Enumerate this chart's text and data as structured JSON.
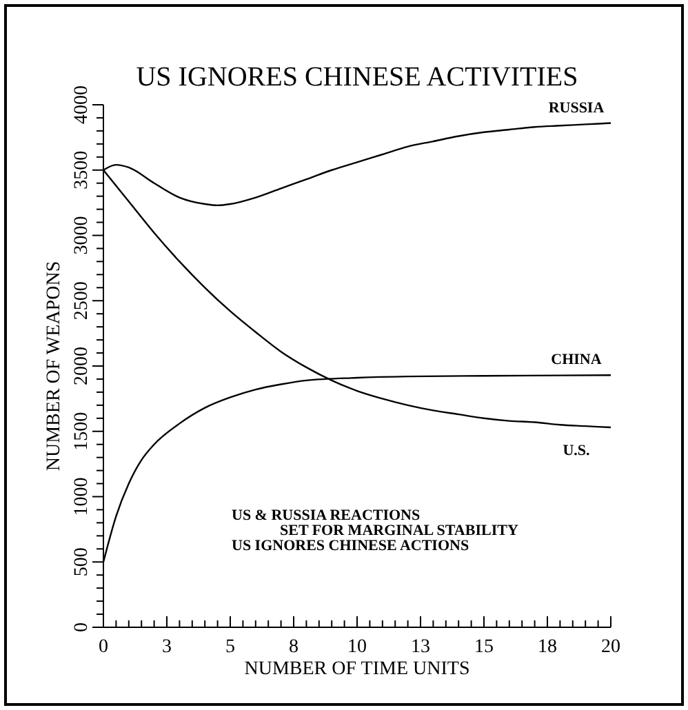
{
  "chart_data": {
    "type": "line",
    "title": "US IGNORES CHINESE ACTIVITIES",
    "xlabel": "NUMBER OF TIME UNITS",
    "ylabel": "NUMBER OF WEAPONS",
    "annotations": [
      "US & RUSSIA REACTIONS",
      "SET FOR MARGINAL STABILITY",
      "US IGNORES CHINESE ACTIONS"
    ],
    "xlim": [
      0,
      20
    ],
    "ylim": [
      0,
      4000
    ],
    "xticks": [
      0,
      {
        "value": 0.5,
        "label": null
      },
      {
        "value": 1,
        "label": null
      },
      {
        "value": 1.5,
        "label": null
      },
      {
        "value": 2,
        "label": null
      },
      {
        "value": 2.5,
        "label": "3"
      },
      {
        "value": 3,
        "label": null
      },
      {
        "value": 3.5,
        "label": null
      },
      {
        "value": 4,
        "label": null
      },
      {
        "value": 4.5,
        "label": null
      },
      5,
      {
        "value": 5.5,
        "label": null
      },
      {
        "value": 6,
        "label": null
      },
      {
        "value": 6.5,
        "label": null
      },
      {
        "value": 7,
        "label": null
      },
      {
        "value": 7.5,
        "label": "8"
      },
      {
        "value": 8,
        "label": null
      },
      {
        "value": 8.5,
        "label": null
      },
      {
        "value": 9,
        "label": null
      },
      {
        "value": 9.5,
        "label": null
      },
      10,
      {
        "value": 10.5,
        "label": null
      },
      {
        "value": 11,
        "label": null
      },
      {
        "value": 11.5,
        "label": null
      },
      {
        "value": 12,
        "label": null
      },
      {
        "value": 12.5,
        "label": "13"
      },
      {
        "value": 13,
        "label": null
      },
      {
        "value": 13.5,
        "label": null
      },
      {
        "value": 14,
        "label": null
      },
      {
        "value": 14.5,
        "label": null
      },
      15,
      {
        "value": 15.5,
        "label": null
      },
      {
        "value": 16,
        "label": null
      },
      {
        "value": 16.5,
        "label": null
      },
      {
        "value": 17,
        "label": null
      },
      {
        "value": 17.5,
        "label": "18"
      },
      {
        "value": 18,
        "label": null
      },
      {
        "value": 18.5,
        "label": null
      },
      {
        "value": 19,
        "label": null
      },
      {
        "value": 19.5,
        "label": null
      },
      20
    ],
    "yticks": [
      0,
      {
        "value": 100,
        "label": null
      },
      {
        "value": 200,
        "label": null
      },
      {
        "value": 300,
        "label": null
      },
      {
        "value": 400,
        "label": null
      },
      500,
      {
        "value": 600,
        "label": null
      },
      {
        "value": 700,
        "label": null
      },
      {
        "value": 800,
        "label": null
      },
      {
        "value": 900,
        "label": null
      },
      1000,
      {
        "value": 1100,
        "label": null
      },
      {
        "value": 1200,
        "label": null
      },
      {
        "value": 1300,
        "label": null
      },
      {
        "value": 1400,
        "label": null
      },
      1500,
      {
        "value": 1600,
        "label": null
      },
      {
        "value": 1700,
        "label": null
      },
      {
        "value": 1800,
        "label": null
      },
      {
        "value": 1900,
        "label": null
      },
      2000,
      {
        "value": 2100,
        "label": null
      },
      {
        "value": 2200,
        "label": null
      },
      {
        "value": 2300,
        "label": null
      },
      {
        "value": 2400,
        "label": null
      },
      2500,
      {
        "value": 2600,
        "label": null
      },
      {
        "value": 2700,
        "label": null
      },
      {
        "value": 2800,
        "label": null
      },
      {
        "value": 2900,
        "label": null
      },
      3000,
      {
        "value": 3100,
        "label": null
      },
      {
        "value": 3200,
        "label": null
      },
      {
        "value": 3300,
        "label": null
      },
      {
        "value": 3400,
        "label": null
      },
      3500,
      {
        "value": 3600,
        "label": null
      },
      {
        "value": 3700,
        "label": null
      },
      {
        "value": 3800,
        "label": null
      },
      {
        "value": 3900,
        "label": null
      },
      4000
    ],
    "grid": false,
    "marker": "none",
    "line_style": "solid",
    "series": [
      {
        "name": "RUSSIA",
        "color": "#000000",
        "x": [
          0,
          0.5,
          1,
          2,
          3,
          4,
          4.5,
          5,
          6,
          7,
          8,
          9,
          10,
          11,
          12,
          13,
          14,
          15,
          16,
          17,
          18,
          19,
          20
        ],
        "values": [
          3500,
          3540,
          3520,
          3400,
          3290,
          3240,
          3230,
          3240,
          3290,
          3360,
          3430,
          3500,
          3560,
          3620,
          3680,
          3720,
          3760,
          3790,
          3810,
          3830,
          3840,
          3850,
          3860
        ]
      },
      {
        "name": "CHINA",
        "color": "#000000",
        "x": [
          0,
          0.5,
          1,
          1.5,
          2,
          3,
          4,
          5,
          6,
          7,
          8,
          10,
          12,
          15,
          20
        ],
        "values": [
          500,
          850,
          1100,
          1280,
          1400,
          1560,
          1680,
          1760,
          1820,
          1860,
          1890,
          1910,
          1920,
          1925,
          1930
        ]
      },
      {
        "name": "U.S.",
        "color": "#000000",
        "x": [
          0,
          1,
          2,
          3,
          4,
          5,
          6,
          7,
          8,
          9,
          10,
          11,
          12,
          13,
          14,
          15,
          16,
          17,
          18,
          19,
          20
        ],
        "values": [
          3500,
          3260,
          3020,
          2800,
          2600,
          2420,
          2260,
          2110,
          1990,
          1890,
          1810,
          1750,
          1700,
          1660,
          1630,
          1600,
          1580,
          1570,
          1550,
          1540,
          1530
        ]
      }
    ]
  }
}
